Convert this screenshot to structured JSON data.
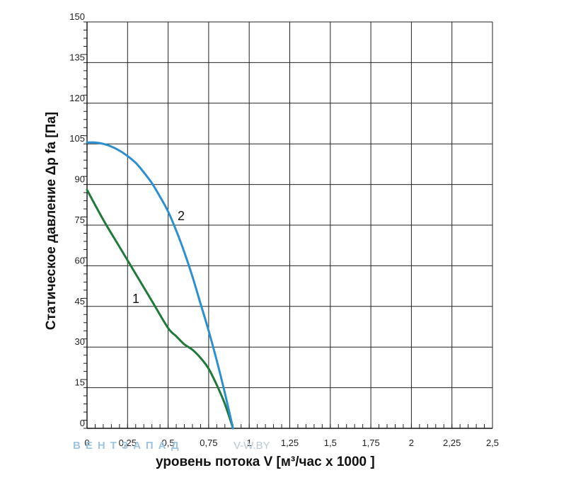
{
  "chart_data": {
    "type": "line",
    "xlabel": "уровень потока  V [м³/час х 1000 ]",
    "ylabel": "Статическое давление  Δp fa [Па]",
    "xlim": [
      0,
      2.5
    ],
    "ylim": [
      0,
      150
    ],
    "x_ticks": [
      "0",
      "0,25",
      "0,5",
      "0,75",
      "1",
      "1,25",
      "1,5",
      "1,75",
      "2",
      "2,25",
      "2,5"
    ],
    "y_ticks": [
      "0",
      "15",
      "30",
      "45",
      "60",
      "75",
      "90",
      "105",
      "120",
      "135",
      "150"
    ],
    "grid": true,
    "series": [
      {
        "name": "1",
        "color": "#1f7a3a",
        "x": [
          0,
          0.1,
          0.2,
          0.3,
          0.4,
          0.5,
          0.55,
          0.6,
          0.65,
          0.7,
          0.75,
          0.8,
          0.85,
          0.9
        ],
        "y": [
          88,
          77,
          67,
          57,
          47,
          37,
          34,
          31,
          29,
          26,
          22,
          16,
          9,
          0
        ]
      },
      {
        "name": "2",
        "color": "#2b8fd0",
        "x": [
          0,
          0.05,
          0.1,
          0.15,
          0.2,
          0.25,
          0.3,
          0.35,
          0.4,
          0.45,
          0.5,
          0.55,
          0.6,
          0.65,
          0.7,
          0.75,
          0.8,
          0.85,
          0.9
        ],
        "y": [
          105.5,
          105.5,
          105,
          104,
          102.5,
          100.5,
          98,
          94.5,
          90.5,
          85.5,
          80,
          73,
          65,
          56,
          46,
          36,
          25,
          13,
          0
        ]
      }
    ],
    "annotations": [
      "1",
      "2"
    ]
  },
  "watermark": {
    "brand": "ВЕНТЗАПАД",
    "site": "V-W.BY"
  }
}
